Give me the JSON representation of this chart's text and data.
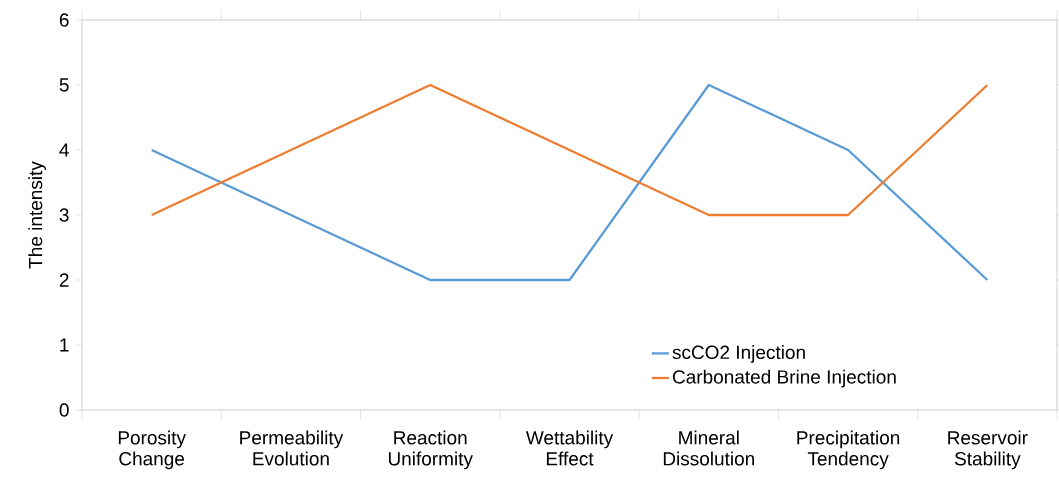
{
  "chart_data": {
    "type": "line",
    "ylabel": "The intensity",
    "categories": [
      "Porosity Change",
      "Permeability Evolution",
      "Reaction Uniformity",
      "Wettability Effect",
      "Mineral Dissolution",
      "Precipitation Tendency",
      "Reservoir Stability"
    ],
    "series": [
      {
        "name": "scCO2 Injection",
        "color": "#5b9bd5",
        "values": [
          4,
          3,
          2,
          2,
          5,
          4,
          2
        ]
      },
      {
        "name": "Carbonated Brine Injection",
        "color": "#ed7d31",
        "values": [
          3,
          4,
          5,
          4,
          3,
          3,
          5
        ]
      }
    ],
    "ylim": [
      0,
      6
    ],
    "yticks": [
      0,
      1,
      2,
      3,
      4,
      5,
      6
    ],
    "grid": false,
    "legend": "bottom right",
    "marker": "none",
    "line_style": "solid"
  }
}
